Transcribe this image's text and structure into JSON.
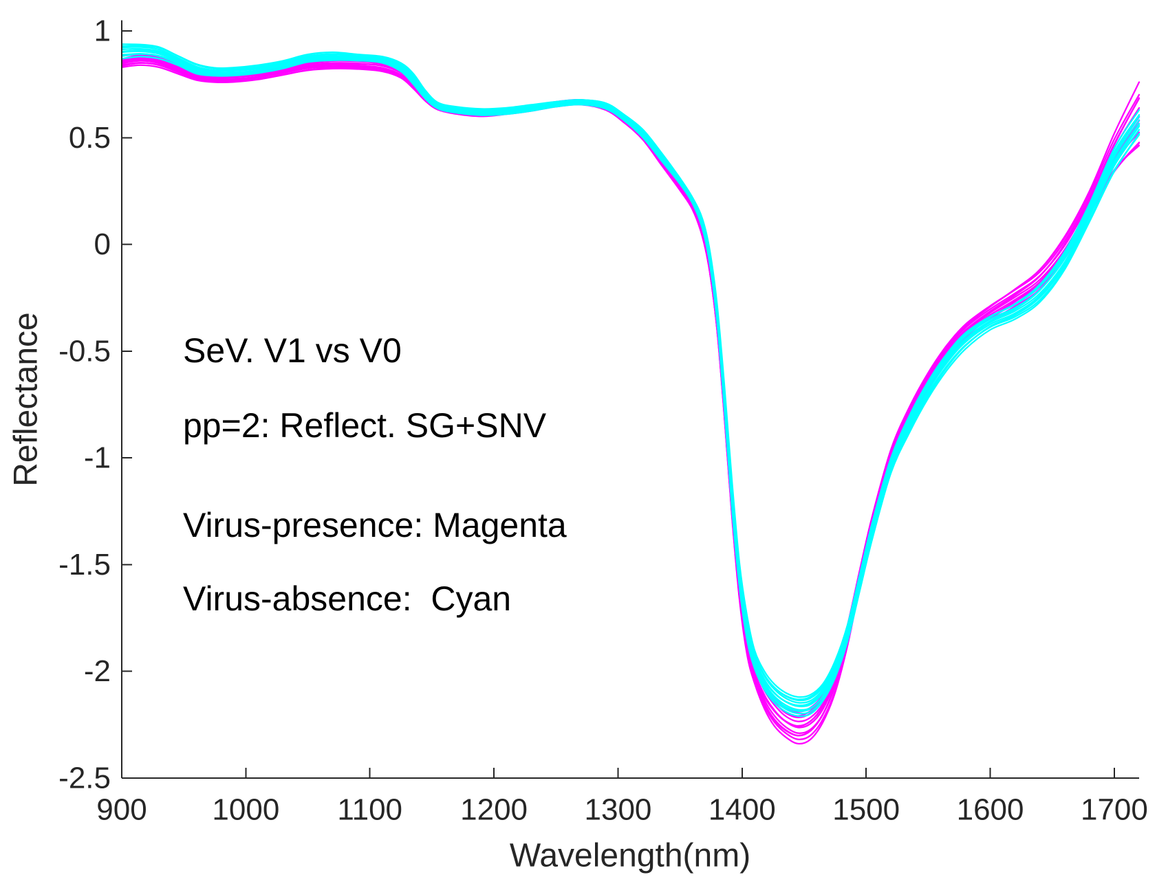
{
  "chart_data": {
    "type": "line",
    "xlabel": "Wavelength(nm)",
    "ylabel": "Reflectance",
    "xlim": [
      900,
      1720
    ],
    "ylim": [
      -2.5,
      1.05
    ],
    "grid": false,
    "xticks": [
      900,
      1000,
      1100,
      1200,
      1300,
      1400,
      1500,
      1600,
      1700
    ],
    "xtick_labels": [
      "900",
      "1000",
      "1100",
      "1200",
      "1300",
      "1400",
      "1500",
      "1600",
      "1700"
    ],
    "yticks": [
      1,
      0.5,
      0,
      -0.5,
      -1,
      -1.5,
      -2,
      -2.5
    ],
    "ytick_labels": [
      "1",
      "0.5",
      "0",
      "-0.5",
      "-1",
      "-1.5",
      "-2",
      "-2.5"
    ],
    "annotations": [
      "SeV. V1 vs V0",
      "pp=2: Reflect. SG+SNV"
    ],
    "x": [
      900,
      915,
      930,
      945,
      960,
      975,
      990,
      1010,
      1030,
      1050,
      1070,
      1090,
      1110,
      1125,
      1135,
      1145,
      1155,
      1170,
      1190,
      1210,
      1230,
      1250,
      1270,
      1290,
      1305,
      1320,
      1335,
      1350,
      1360,
      1368,
      1374,
      1380,
      1386,
      1392,
      1398,
      1404,
      1410,
      1418,
      1426,
      1435,
      1445,
      1455,
      1465,
      1475,
      1485,
      1495,
      1505,
      1520,
      1535,
      1550,
      1565,
      1580,
      1600,
      1620,
      1640,
      1660,
      1680,
      1700,
      1720
    ],
    "series": [
      {
        "name": "Virus-presence: Magenta",
        "color": "#ff00ff",
        "curves": 12,
        "lower": [
          0.83,
          0.84,
          0.83,
          0.8,
          0.77,
          0.76,
          0.76,
          0.77,
          0.79,
          0.81,
          0.82,
          0.82,
          0.81,
          0.78,
          0.73,
          0.67,
          0.63,
          0.61,
          0.6,
          0.61,
          0.625,
          0.645,
          0.655,
          0.63,
          0.57,
          0.49,
          0.37,
          0.25,
          0.16,
          0.03,
          -0.14,
          -0.42,
          -0.84,
          -1.3,
          -1.68,
          -1.93,
          -2.06,
          -2.18,
          -2.26,
          -2.31,
          -2.34,
          -2.32,
          -2.24,
          -2.1,
          -1.88,
          -1.6,
          -1.34,
          -1.03,
          -0.84,
          -0.68,
          -0.55,
          -0.45,
          -0.36,
          -0.29,
          -0.21,
          -0.07,
          0.13,
          0.32,
          0.43
        ],
        "upper": [
          0.87,
          0.89,
          0.88,
          0.85,
          0.82,
          0.8,
          0.8,
          0.81,
          0.83,
          0.86,
          0.87,
          0.87,
          0.86,
          0.83,
          0.78,
          0.71,
          0.66,
          0.64,
          0.63,
          0.635,
          0.65,
          0.67,
          0.68,
          0.66,
          0.6,
          0.53,
          0.41,
          0.29,
          0.2,
          0.09,
          -0.06,
          -0.32,
          -0.72,
          -1.16,
          -1.54,
          -1.8,
          -1.96,
          -2.06,
          -2.12,
          -2.17,
          -2.19,
          -2.17,
          -2.11,
          -1.98,
          -1.78,
          -1.52,
          -1.27,
          -0.96,
          -0.76,
          -0.6,
          -0.47,
          -0.37,
          -0.28,
          -0.2,
          -0.11,
          0.04,
          0.25,
          0.52,
          0.76
        ]
      },
      {
        "name": "Virus-absence:  Cyan",
        "color": "#00ffff",
        "curves": 12,
        "lower": [
          0.87,
          0.88,
          0.87,
          0.84,
          0.8,
          0.79,
          0.79,
          0.8,
          0.82,
          0.85,
          0.86,
          0.86,
          0.85,
          0.81,
          0.75,
          0.68,
          0.635,
          0.615,
          0.605,
          0.61,
          0.625,
          0.645,
          0.655,
          0.635,
          0.58,
          0.5,
          0.39,
          0.28,
          0.19,
          0.07,
          -0.1,
          -0.38,
          -0.8,
          -1.26,
          -1.62,
          -1.86,
          -1.99,
          -2.09,
          -2.15,
          -2.19,
          -2.21,
          -2.2,
          -2.14,
          -2.03,
          -1.86,
          -1.62,
          -1.38,
          -1.07,
          -0.88,
          -0.72,
          -0.59,
          -0.49,
          -0.4,
          -0.35,
          -0.27,
          -0.12,
          0.1,
          0.33,
          0.5
        ],
        "upper": [
          0.94,
          0.94,
          0.93,
          0.89,
          0.85,
          0.83,
          0.83,
          0.84,
          0.86,
          0.89,
          0.9,
          0.89,
          0.88,
          0.85,
          0.8,
          0.72,
          0.665,
          0.645,
          0.635,
          0.64,
          0.655,
          0.67,
          0.68,
          0.665,
          0.61,
          0.54,
          0.43,
          0.31,
          0.22,
          0.12,
          -0.03,
          -0.29,
          -0.68,
          -1.12,
          -1.5,
          -1.74,
          -1.9,
          -2.0,
          -2.06,
          -2.1,
          -2.12,
          -2.11,
          -2.06,
          -1.95,
          -1.78,
          -1.54,
          -1.3,
          -1.0,
          -0.8,
          -0.64,
          -0.51,
          -0.41,
          -0.33,
          -0.27,
          -0.18,
          -0.03,
          0.19,
          0.45,
          0.63
        ]
      }
    ]
  }
}
